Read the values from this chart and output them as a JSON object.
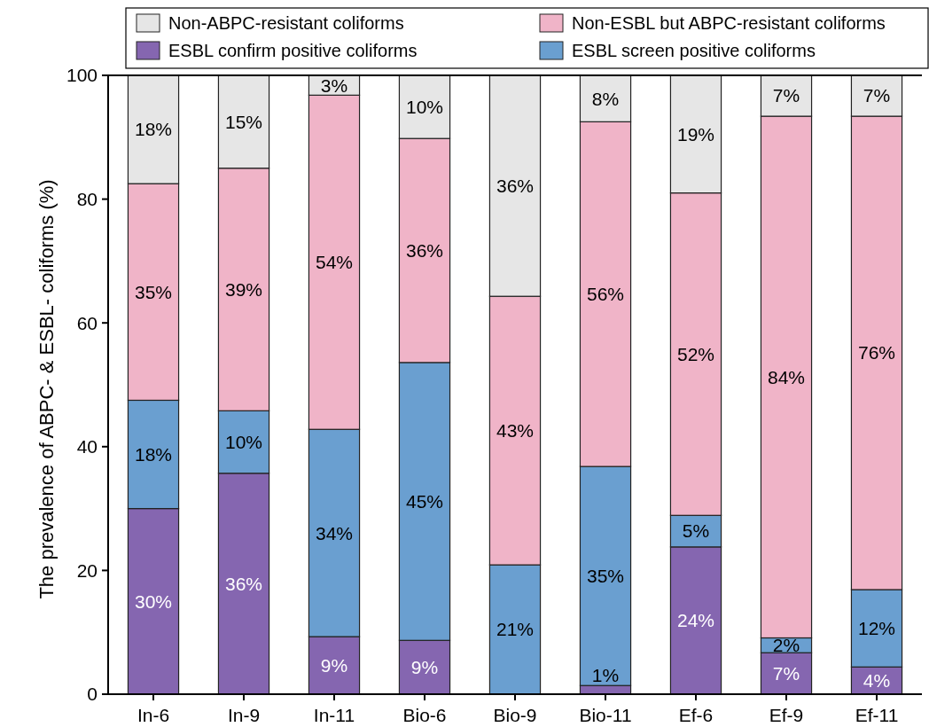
{
  "chart_data": {
    "type": "bar",
    "stacked": true,
    "ylabel": "The prevalence of ABPC- & ESBL- coliforms (%)",
    "categories": [
      "In-6",
      "In-9",
      "In-11",
      "Bio-6",
      "Bio-9",
      "Bio-11",
      "Ef-6",
      "Ef-9",
      "Ef-11"
    ],
    "ylim": [
      0,
      100
    ],
    "yticks": [
      0,
      20,
      40,
      60,
      80,
      100
    ],
    "grid": false,
    "legend": "top",
    "series": [
      {
        "name": "ESBL confirm positive coliforms",
        "color": "#8566b0",
        "values": [
          30.0,
          35.7,
          9.3,
          8.7,
          0,
          1.4,
          23.8,
          6.7,
          4.4
        ],
        "value_labels": [
          "30%",
          "36%",
          "9%",
          "9%",
          null,
          "1%",
          "24%",
          "7%",
          "4%"
        ]
      },
      {
        "name": "ESBL screen positive coliforms",
        "color": "#6a9fd0",
        "values": [
          17.5,
          10.1,
          33.5,
          44.9,
          20.9,
          35.4,
          5.1,
          2.4,
          12.5
        ],
        "value_labels": [
          "18%",
          "10%",
          "34%",
          "45%",
          "21%",
          "35%",
          "5%",
          "2%",
          "12%"
        ]
      },
      {
        "name": "Non-ESBL but ABPC-resistant coliforms",
        "color": "#f0b4c8",
        "values": [
          35.0,
          39.2,
          54.0,
          36.2,
          43.4,
          55.7,
          52.1,
          84.3,
          76.5
        ],
        "value_labels": [
          "35%",
          "39%",
          "54%",
          "36%",
          "43%",
          "56%",
          "52%",
          "84%",
          "76%"
        ]
      },
      {
        "name": "Non-ABPC-resistant coliforms",
        "color": "#e6e6e6",
        "values": [
          17.5,
          15.0,
          3.2,
          10.2,
          35.7,
          7.5,
          19.0,
          6.6,
          6.6
        ],
        "value_labels": [
          "18%",
          "15%",
          "3%",
          "10%",
          "36%",
          "8%",
          "19%",
          "7%",
          "7%"
        ]
      }
    ]
  }
}
